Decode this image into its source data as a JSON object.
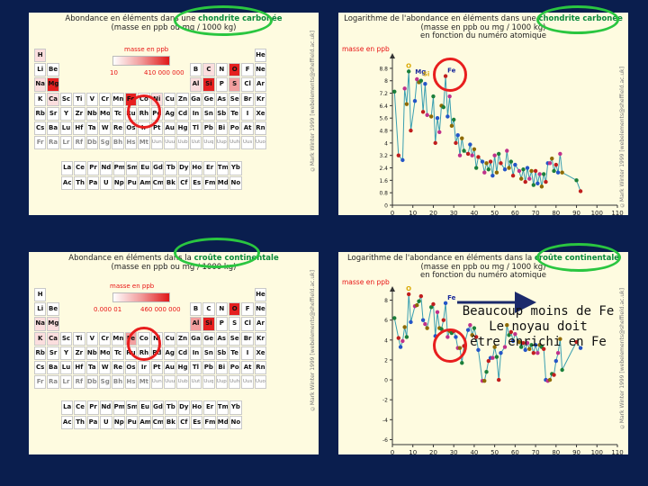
{
  "panels": {
    "tl": {
      "title_pre": "Abondance en éléments dans une ",
      "title_hl": "chondrite carbonée",
      "subtitle": "(masse en ppb ou mg / 1000 kg)",
      "legend_label": "masse en ppb",
      "legend_min": "10",
      "legend_max": "410 000 000",
      "watermark": "©Mark Winter 1999 [webelements@sheffield.ac.uk]"
    },
    "tr": {
      "title_pre": "Logarithme de l'abondance en éléments dans une ",
      "title_hl": "chondrite carbonée",
      "subtitle": "(masse en ppb ou mg / 1000 kg)",
      "subtitle2": "en fonction du numéro atomique",
      "ylabel": "masse en ppb",
      "xlabel": "numéro atomique",
      "label_o": "O",
      "label_mg": "Mg",
      "label_si": "Si",
      "label_fe": "Fe",
      "watermark": "©Mark Winter 1999 [webelements@sheffield.ac.uk]"
    },
    "bl": {
      "title_pre": "Abondance en éléments dans la ",
      "title_hl": "croûte continentale",
      "subtitle": "(masse en ppb ou mg / 1000 kg)",
      "legend_label": "masse en ppb",
      "legend_min": "0.000 01",
      "legend_max": "460 000 000",
      "watermark": "©Mark Winter 1999 [webelements@sheffield.ac.uk]"
    },
    "br": {
      "title_pre": "Logarithme de l'abondance en éléments dans la ",
      "title_hl": "croûte continentale",
      "subtitle": "(masse en ppb ou mg / 1000 kg)",
      "subtitle2": "en fonction du numéro atomique",
      "ylabel": "masse en ppb",
      "xlabel": "numéro atomique",
      "label_o": "O",
      "label_fe": "Fe",
      "watermark": "©Mark Winter 1999 [webelements@sheffield.ac.uk]"
    }
  },
  "annotation": {
    "line1": "Beaucoup moins de Fe",
    "line2": "Le noyau doit",
    "line3": "être enrichi en Fe"
  },
  "periodic_table": {
    "rows": [
      [
        "H",
        "",
        "",
        "",
        "",
        "",
        "",
        "",
        "",
        "",
        "",
        "",
        "",
        "",
        "",
        "",
        "",
        "He"
      ],
      [
        "Li",
        "Be",
        "",
        "",
        "",
        "",
        "",
        "",
        "",
        "",
        "",
        "",
        "B",
        "C",
        "N",
        "O",
        "F",
        "Ne"
      ],
      [
        "Na",
        "Mg",
        "",
        "",
        "",
        "",
        "",
        "",
        "",
        "",
        "",
        "",
        "Al",
        "Si",
        "P",
        "S",
        "Cl",
        "Ar"
      ],
      [
        "K",
        "Ca",
        "Sc",
        "Ti",
        "V",
        "Cr",
        "Mn",
        "Fe",
        "Co",
        "Ni",
        "Cu",
        "Zn",
        "Ga",
        "Ge",
        "As",
        "Se",
        "Br",
        "Kr"
      ],
      [
        "Rb",
        "Sr",
        "Y",
        "Zr",
        "Nb",
        "Mo",
        "Tc",
        "Ru",
        "Rh",
        "Pd",
        "Ag",
        "Cd",
        "In",
        "Sn",
        "Sb",
        "Te",
        "I",
        "Xe"
      ],
      [
        "Cs",
        "Ba",
        "Lu",
        "Hf",
        "Ta",
        "W",
        "Re",
        "Os",
        "Ir",
        "Pt",
        "Au",
        "Hg",
        "Tl",
        "Pb",
        "Bi",
        "Po",
        "At",
        "Rn"
      ],
      [
        "Fr",
        "Ra",
        "Lr",
        "Rf",
        "Db",
        "Sg",
        "Bh",
        "Hs",
        "Mt",
        "Uun",
        "Uuu",
        "Uub",
        "Uut",
        "Uuq",
        "Uup",
        "Uuh",
        "Uus",
        "Uuo"
      ]
    ],
    "lanthanides": [
      "La",
      "Ce",
      "Pr",
      "Nd",
      "Pm",
      "Sm",
      "Eu",
      "Gd",
      "Tb",
      "Dy",
      "Ho",
      "Er",
      "Tm",
      "Yb"
    ],
    "actinides": [
      "Ac",
      "Th",
      "Pa",
      "U",
      "Np",
      "Pu",
      "Am",
      "Cm",
      "Bk",
      "Cf",
      "Es",
      "Fm",
      "Md",
      "No"
    ]
  },
  "chart_data": [
    {
      "type": "line",
      "title": "Logarithme de l'abondance en éléments dans une chondrite carbonée",
      "ylabel": "masse en ppb",
      "xlabel": "numéro atomique",
      "xlim": [
        0,
        110
      ],
      "ylim": [
        0,
        9.2
      ],
      "xticks": [
        0,
        10,
        20,
        30,
        40,
        50,
        60,
        70,
        80,
        90,
        100,
        110
      ],
      "yticks": [
        0,
        0.8,
        1.6,
        2.4,
        3.2,
        4,
        4.8,
        5.6,
        6.4,
        7.2,
        8,
        8.8
      ],
      "x": [
        1,
        3,
        5,
        6,
        7,
        8,
        9,
        11,
        12,
        13,
        14,
        15,
        16,
        17,
        19,
        20,
        21,
        22,
        23,
        24,
        25,
        26,
        27,
        28,
        29,
        30,
        31,
        32,
        33,
        34,
        35,
        37,
        38,
        39,
        40,
        41,
        42,
        44,
        45,
        46,
        47,
        48,
        49,
        50,
        51,
        52,
        53,
        55,
        56,
        57,
        58,
        59,
        60,
        62,
        63,
        64,
        65,
        66,
        67,
        68,
        69,
        70,
        71,
        72,
        73,
        74,
        75,
        76,
        77,
        78,
        79,
        80,
        81,
        82,
        83,
        90,
        92
      ],
      "y": [
        7.3,
        3.2,
        2.9,
        7.5,
        6.5,
        8.6,
        4.8,
        6.7,
        8.1,
        7.9,
        8.0,
        6.0,
        7.8,
        5.8,
        5.7,
        7.0,
        4.0,
        5.6,
        4.7,
        6.4,
        6.3,
        8.3,
        5.7,
        7.0,
        5.1,
        5.5,
        4.0,
        4.5,
        3.2,
        4.3,
        3.5,
        3.3,
        3.9,
        3.2,
        3.6,
        2.4,
        3.1,
        2.8,
        2.1,
        2.7,
        2.3,
        2.8,
        1.9,
        3.2,
        2.1,
        3.3,
        2.7,
        2.3,
        3.5,
        2.4,
        2.8,
        1.9,
        2.6,
        2.2,
        1.7,
        2.3,
        1.5,
        2.4,
        1.7,
        2.2,
        1.3,
        2.2,
        1.4,
        2.0,
        1.2,
        2.0,
        1.5,
        2.7,
        2.7,
        3.0,
        2.2,
        2.6,
        2.1,
        3.3,
        2.1,
        1.6,
        0.9
      ]
    },
    {
      "type": "line",
      "title": "Logarithme de l'abondance en éléments dans la croûte continentale",
      "ylabel": "masse en ppb",
      "xlabel": "numéro atomique",
      "xlim": [
        0,
        110
      ],
      "ylim": [
        -6.5,
        8.5
      ],
      "xticks": [
        0,
        10,
        20,
        30,
        40,
        50,
        60,
        70,
        80,
        90,
        100,
        110
      ],
      "yticks": [
        -6,
        -4,
        -2,
        0,
        2,
        4,
        6,
        8
      ],
      "x": [
        1,
        3,
        4,
        5,
        6,
        7,
        8,
        9,
        11,
        12,
        13,
        14,
        15,
        16,
        17,
        19,
        20,
        21,
        22,
        23,
        24,
        25,
        26,
        27,
        28,
        29,
        30,
        31,
        32,
        33,
        34,
        35,
        37,
        38,
        39,
        40,
        41,
        42,
        44,
        45,
        46,
        47,
        48,
        49,
        50,
        51,
        52,
        53,
        55,
        56,
        57,
        58,
        59,
        60,
        62,
        63,
        64,
        65,
        66,
        67,
        68,
        69,
        70,
        71,
        72,
        73,
        74,
        75,
        76,
        77,
        78,
        79,
        80,
        81,
        82,
        83,
        90,
        92
      ],
      "y": [
        6.2,
        4.2,
        3.3,
        3.9,
        5.3,
        4.3,
        8.6,
        5.8,
        7.4,
        7.5,
        7.9,
        8.4,
        6.0,
        5.6,
        5.2,
        7.3,
        7.6,
        4.4,
        6.8,
        5.2,
        5.1,
        6.0,
        7.7,
        4.3,
        4.9,
        4.7,
        4.9,
        4.3,
        3.2,
        3.2,
        1.7,
        3.4,
        5.0,
        5.5,
        4.5,
        5.2,
        4.3,
        3.0,
        -0.1,
        -0.1,
        0.8,
        1.9,
        2.2,
        2.2,
        3.3,
        2.3,
        0.0,
        2.7,
        3.3,
        5.5,
        4.5,
        4.8,
        3.9,
        4.6,
        3.8,
        3.3,
        3.7,
        3.0,
        3.7,
        3.1,
        3.5,
        2.7,
        3.5,
        2.7,
        3.5,
        3.3,
        3.1,
        0.0,
        -0.1,
        0.0,
        0.6,
        0.5,
        1.9,
        2.7,
        4.1,
        1.0,
        3.8,
        3.2
      ]
    }
  ]
}
